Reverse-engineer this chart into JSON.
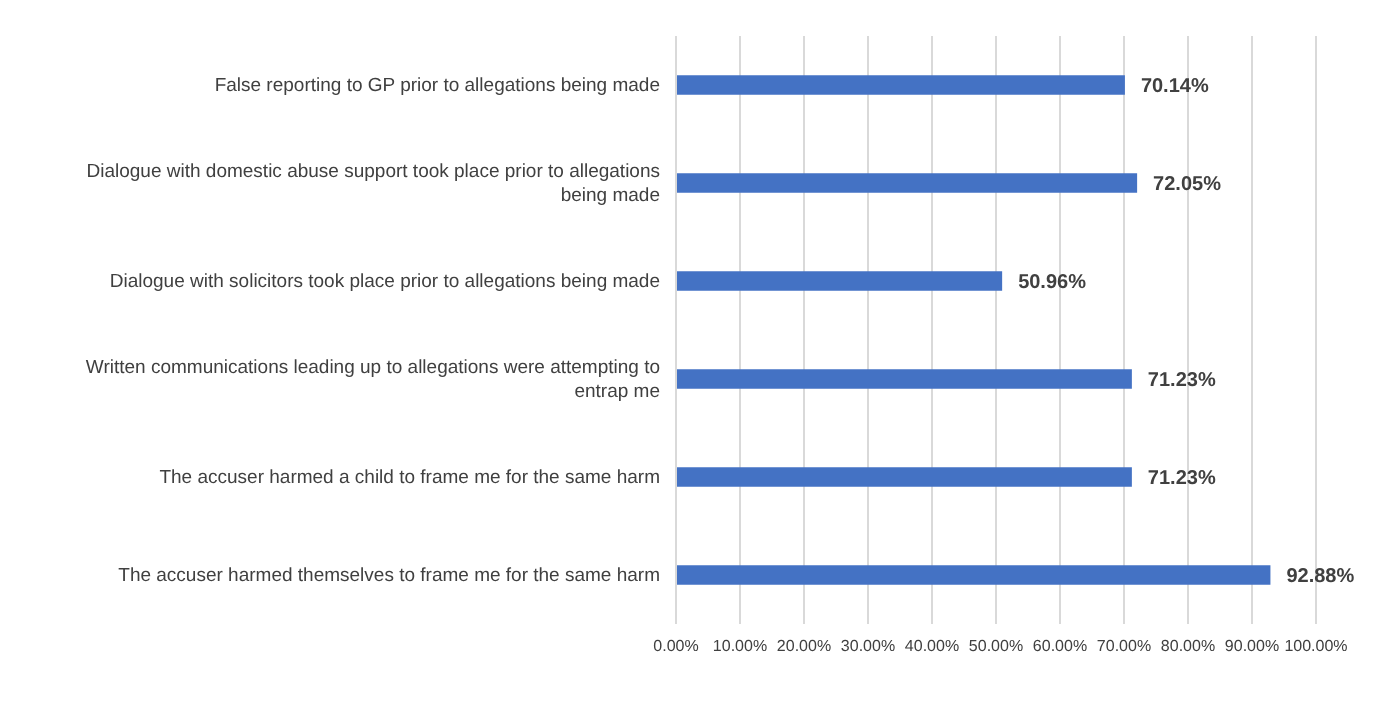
{
  "chart_data": {
    "type": "bar",
    "orientation": "horizontal",
    "categories": [
      "False reporting to GP prior to allegations being made",
      "Dialogue with domestic abuse support took place prior to allegations being made",
      "Dialogue with solicitors took place prior to allegations being made",
      "Written communications leading up to allegations were attempting to entrap me",
      "The accuser harmed a child to frame me for the same harm",
      "The accuser harmed themselves to frame me for the same harm"
    ],
    "values": [
      70.14,
      72.05,
      50.96,
      71.23,
      71.23,
      92.88
    ],
    "value_labels": [
      "70.14%",
      "72.05%",
      "50.96%",
      "71.23%",
      "71.23%",
      "92.88%"
    ],
    "color": "#4472c4",
    "xlim": [
      0,
      100
    ],
    "xticks": [
      {
        "value": 0,
        "label": "0.00%"
      },
      {
        "value": 10,
        "label": "10.00%"
      },
      {
        "value": 20,
        "label": "20.00%"
      },
      {
        "value": 30,
        "label": "30.00%"
      },
      {
        "value": 40,
        "label": "40.00%"
      },
      {
        "value": 50,
        "label": "50.00%"
      },
      {
        "value": 60,
        "label": "60.00%"
      },
      {
        "value": 70,
        "label": "70.00%"
      },
      {
        "value": 80,
        "label": "80.00%"
      },
      {
        "value": 90,
        "label": "90.00%"
      },
      {
        "value": 100,
        "label": "100.00%"
      }
    ],
    "grid": "x",
    "legend": false
  }
}
